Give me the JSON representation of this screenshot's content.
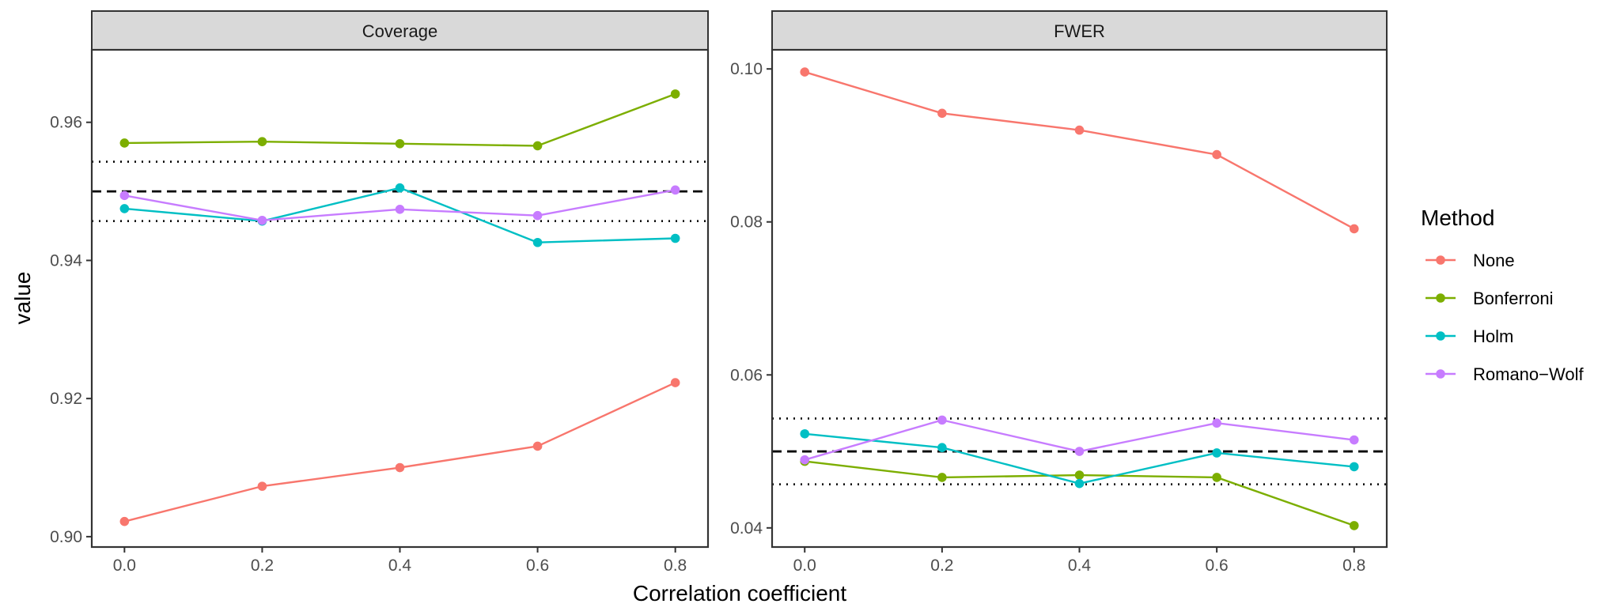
{
  "chart_data": {
    "type": "line",
    "xlabel": "Correlation coefficient",
    "ylabel": "value",
    "x": [
      0.0,
      0.2,
      0.4,
      0.6,
      0.8
    ],
    "x_tick_labels": [
      "0.0",
      "0.2",
      "0.4",
      "0.6",
      "0.8"
    ],
    "legend": {
      "title": "Method",
      "placement": "right",
      "entries": [
        {
          "name": "None",
          "color": "#F8766D"
        },
        {
          "name": "Bonferroni",
          "color": "#7CAE00"
        },
        {
          "name": "Holm",
          "color": "#00BFC4"
        },
        {
          "name": "Romano−Wolf",
          "color": "#C77CFF"
        }
      ]
    },
    "panels": [
      {
        "title": "Coverage",
        "ylim": [
          0.8985,
          0.9705
        ],
        "y_ticks": [
          0.9,
          0.92,
          0.94,
          0.96
        ],
        "y_tick_labels": [
          "0.90",
          "0.92",
          "0.94",
          "0.96"
        ],
        "reference_lines": [
          {
            "value": 0.95,
            "style": "dashed"
          },
          {
            "value": 0.9543,
            "style": "dotted"
          },
          {
            "value": 0.9457,
            "style": "dotted"
          }
        ],
        "series": [
          {
            "name": "None",
            "values": [
              0.9022,
              0.9073,
              0.91,
              0.9131,
              0.9223
            ]
          },
          {
            "name": "Bonferroni",
            "values": [
              0.957,
              0.9572,
              0.9569,
              0.9566,
              0.9641
            ]
          },
          {
            "name": "Holm",
            "values": [
              0.9475,
              0.9457,
              0.9505,
              0.9426,
              0.9432
            ]
          },
          {
            "name": "Romano−Wolf",
            "values": [
              0.9494,
              0.9458,
              0.9474,
              0.9465,
              0.9502
            ]
          }
        ]
      },
      {
        "title": "FWER",
        "ylim": [
          0.0375,
          0.1025
        ],
        "y_ticks": [
          0.04,
          0.06,
          0.08,
          0.1
        ],
        "y_tick_labels": [
          "0.04",
          "0.06",
          "0.08",
          "0.10"
        ],
        "reference_lines": [
          {
            "value": 0.05,
            "style": "dashed"
          },
          {
            "value": 0.0543,
            "style": "dotted"
          },
          {
            "value": 0.0457,
            "style": "dotted"
          }
        ],
        "series": [
          {
            "name": "None",
            "values": [
              0.0996,
              0.0942,
              0.092,
              0.0888,
              0.0791
            ]
          },
          {
            "name": "Bonferroni",
            "values": [
              0.0487,
              0.0466,
              0.0469,
              0.0466,
              0.0403
            ]
          },
          {
            "name": "Holm",
            "values": [
              0.0523,
              0.0505,
              0.0458,
              0.0498,
              0.048
            ]
          },
          {
            "name": "Romano−Wolf",
            "values": [
              0.0489,
              0.0541,
              0.05,
              0.0537,
              0.0515
            ]
          }
        ]
      }
    ]
  }
}
